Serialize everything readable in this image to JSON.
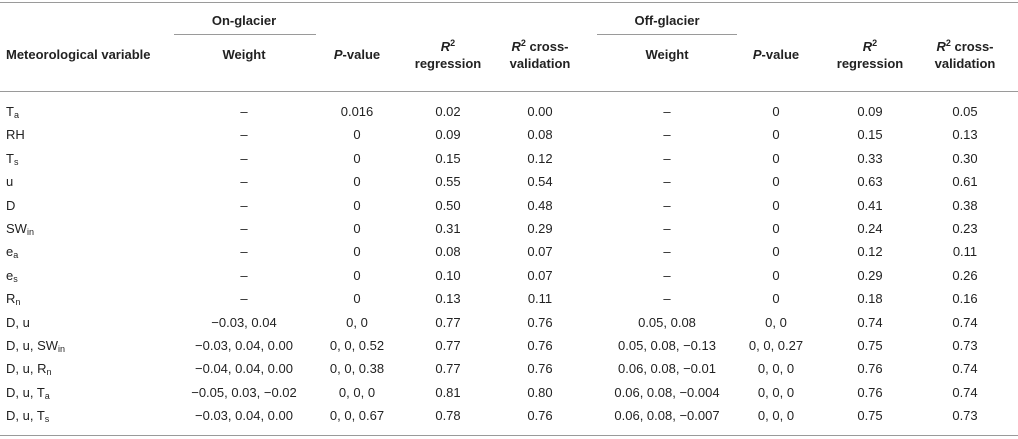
{
  "table": {
    "group_headers": {
      "on": "On-glacier",
      "off": "Off-glacier"
    },
    "col_first": "Meteorological variable",
    "cols": {
      "weight": "Weight",
      "p_letter": "P",
      "p_rest": "-value",
      "r_letter": "R",
      "r_exp": "2",
      "regression": "regression",
      "cv_rest": " cross-",
      "validation": "validation"
    },
    "rows": [
      {
        "var": "T",
        "sub": "a",
        "vals": [
          "–",
          "0.016",
          "0.02",
          "0.00",
          "–",
          "0",
          "0.09",
          "0.05"
        ]
      },
      {
        "var": "RH",
        "sub": "",
        "vals": [
          "–",
          "0",
          "0.09",
          "0.08",
          "–",
          "0",
          "0.15",
          "0.13"
        ]
      },
      {
        "var": "T",
        "sub": "s",
        "vals": [
          "–",
          "0",
          "0.15",
          "0.12",
          "–",
          "0",
          "0.33",
          "0.30"
        ]
      },
      {
        "var": "u",
        "sub": "",
        "vals": [
          "–",
          "0",
          "0.55",
          "0.54",
          "–",
          "0",
          "0.63",
          "0.61"
        ]
      },
      {
        "var": "D",
        "sub": "",
        "vals": [
          "–",
          "0",
          "0.50",
          "0.48",
          "–",
          "0",
          "0.41",
          "0.38"
        ]
      },
      {
        "var": "SW",
        "sub": "in",
        "vals": [
          "–",
          "0",
          "0.31",
          "0.29",
          "–",
          "0",
          "0.24",
          "0.23"
        ]
      },
      {
        "var": "e",
        "sub": "a",
        "vals": [
          "–",
          "0",
          "0.08",
          "0.07",
          "–",
          "0",
          "0.12",
          "0.11"
        ]
      },
      {
        "var": "e",
        "sub": "s",
        "vals": [
          "–",
          "0",
          "0.10",
          "0.07",
          "–",
          "0",
          "0.29",
          "0.26"
        ]
      },
      {
        "var": "R",
        "sub": "n",
        "vals": [
          "–",
          "0",
          "0.13",
          "0.11",
          "–",
          "0",
          "0.18",
          "0.16"
        ]
      },
      {
        "var": "D, u",
        "sub": "",
        "vals": [
          "−0.03, 0.04",
          "0, 0",
          "0.77",
          "0.76",
          "0.05, 0.08",
          "0, 0",
          "0.74",
          "0.74"
        ]
      },
      {
        "var": "D, u, SW",
        "sub": "in",
        "vals": [
          "−0.03, 0.04, 0.00",
          "0, 0, 0.52",
          "0.77",
          "0.76",
          "0.05, 0.08, −0.13",
          "0, 0, 0.27",
          "0.75",
          "0.73"
        ]
      },
      {
        "var": "D, u, R",
        "sub": "n",
        "vals": [
          "−0.04, 0.04, 0.00",
          "0, 0, 0.38",
          "0.77",
          "0.76",
          "0.06, 0.08, −0.01",
          "0, 0, 0",
          "0.76",
          "0.74"
        ]
      },
      {
        "var": "D, u, T",
        "sub": "a",
        "vals": [
          "−0.05, 0.03, −0.02",
          "0, 0, 0",
          "0.81",
          "0.80",
          "0.06, 0.08, −0.004",
          "0, 0, 0",
          "0.76",
          "0.74"
        ]
      },
      {
        "var": "D, u, T",
        "sub": "s",
        "vals": [
          "−0.03, 0.04, 0.00",
          "0, 0, 0.67",
          "0.78",
          "0.76",
          "0.06, 0.08, −0.007",
          "0, 0, 0",
          "0.75",
          "0.73"
        ]
      }
    ]
  }
}
